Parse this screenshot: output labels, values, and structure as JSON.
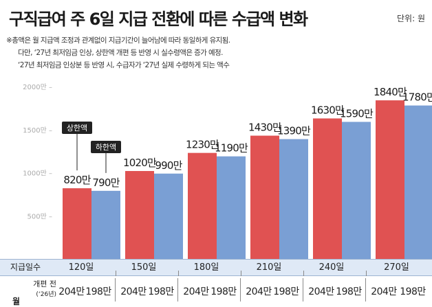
{
  "title": "구직급여 주 6일 지급 전환에 따른 수급액 변화",
  "unit": "단위: 원",
  "notes": [
    "※총액은 월 지급액 조정과 관계없이 지급기간이 늘어남에 따라 동일하게 유지됨.",
    "다만, ‘27년 최저임금 인상, 상한액 개편 등 반영 시 실수령액은 증가 예정.",
    "‘27년 최저임금 인상분 등 반영 시, 수급자가 ‘27년 실제 수령하게 되는 액수"
  ],
  "colors": {
    "upper": "#e05252",
    "lower": "#7a9fd4",
    "row_bg": "#dfe9f6"
  },
  "chart_data": {
    "type": "bar",
    "categories": [
      "120일",
      "150일",
      "180일",
      "210일",
      "240일",
      "270일"
    ],
    "series": [
      {
        "name": "상한액",
        "values": [
          820,
          1020,
          1230,
          1430,
          1630,
          1840
        ],
        "labels": [
          "820만",
          "1020만",
          "1230만",
          "1430만",
          "1630만",
          "1840만"
        ]
      },
      {
        "name": "하한액",
        "values": [
          790,
          990,
          1190,
          1390,
          1590,
          1780
        ],
        "labels": [
          "790만",
          "990만",
          "1190만",
          "1390만",
          "1590만",
          "1780만"
        ]
      }
    ],
    "y_ticks": [
      "500만 –",
      "1000만 –",
      "1500만 –",
      "2000만 –"
    ],
    "y_tick_values": [
      500,
      1000,
      1500,
      2000
    ],
    "ylim": [
      0,
      2000
    ],
    "legend_callouts": [
      "상한액",
      "하한액"
    ]
  },
  "table": {
    "header_label": "지급일수",
    "days": [
      "120일",
      "150일",
      "180일",
      "210일",
      "240일",
      "270일"
    ],
    "row2_label": "월",
    "row2_sub": "개편 전",
    "row2_sub2": "(‘26년)",
    "pairs": [
      [
        "204만",
        "198만"
      ],
      [
        "204만",
        "198만"
      ],
      [
        "204만",
        "198만"
      ],
      [
        "204만",
        "198만"
      ],
      [
        "204만",
        "198만"
      ],
      [
        "204만",
        "198만"
      ]
    ]
  }
}
